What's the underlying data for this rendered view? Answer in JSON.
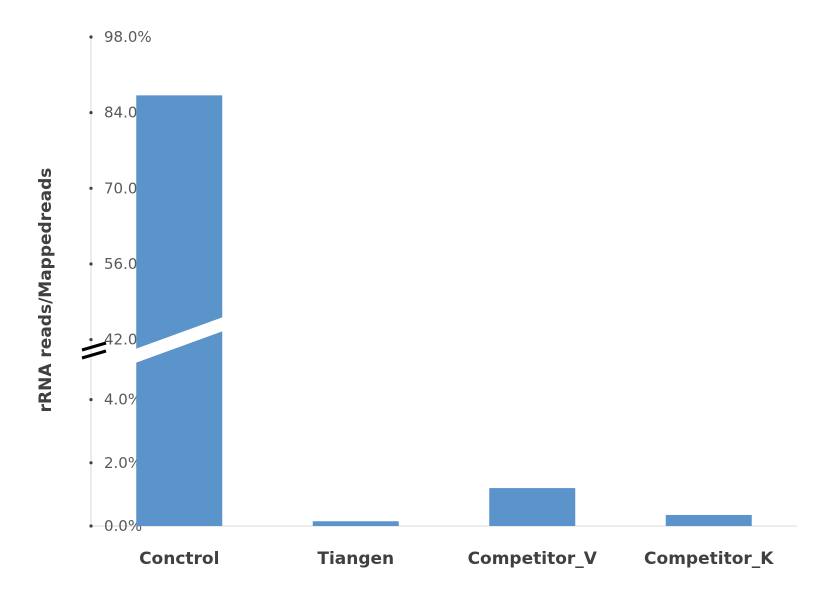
{
  "chart_data": {
    "type": "bar",
    "title": "",
    "xlabel": "",
    "ylabel": "rRNA reads/Mappedreads",
    "categories": [
      "Conctrol",
      "Tiangen",
      "Competitor_V",
      "Competitor_K"
    ],
    "series": [
      {
        "values": [
          87.2,
          0.15,
          1.2,
          0.35
        ]
      }
    ],
    "y_tick_labels": [
      "0.0%",
      "2.0%",
      "4.0%",
      "42.0%",
      "56.0%",
      "70.0%",
      "84.0%",
      "98.0%"
    ],
    "y_ticks": [
      0,
      2,
      4,
      42,
      56,
      70,
      84,
      98
    ],
    "axis_break": {
      "lower_max": 5.0,
      "upper_min": 41.0
    },
    "ylim": [
      0,
      98
    ],
    "grid": false,
    "legend": "none",
    "bar_color": "#5B93CB",
    "axis_color": "#d9d9d9"
  }
}
